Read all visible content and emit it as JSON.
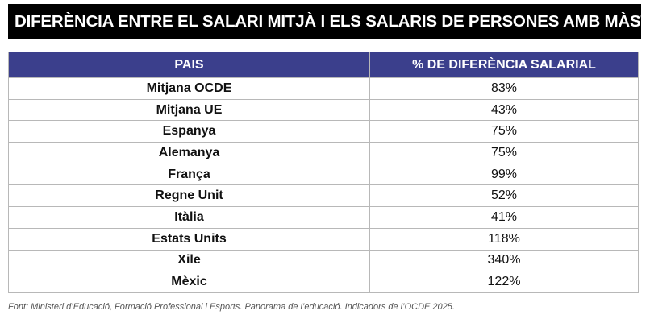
{
  "header": {
    "title": "DIFERÈNCIA ENTRE EL SALARI MITJÀ I ELS SALARIS DE PERSONES AMB MÀSTER"
  },
  "table": {
    "columns": [
      "PAIS",
      "% DE DIFERÈNCIA SALARIAL"
    ],
    "rows": [
      [
        "Mitjana OCDE",
        "83%"
      ],
      [
        "Mitjana UE",
        "43%"
      ],
      [
        "Espanya",
        "75%"
      ],
      [
        "Alemanya",
        "75%"
      ],
      [
        "França",
        "99%"
      ],
      [
        "Regne Unit",
        "52%"
      ],
      [
        "Itàlia",
        "41%"
      ],
      [
        "Estats Units",
        "118%"
      ],
      [
        "Xile",
        "340%"
      ],
      [
        "Mèxic",
        "122%"
      ]
    ]
  },
  "footer": {
    "source": "Font: Ministeri d’Educació, Formació Professional i Esports. Panorama de l’educació. Indicadors de l’OCDE 2025."
  }
}
